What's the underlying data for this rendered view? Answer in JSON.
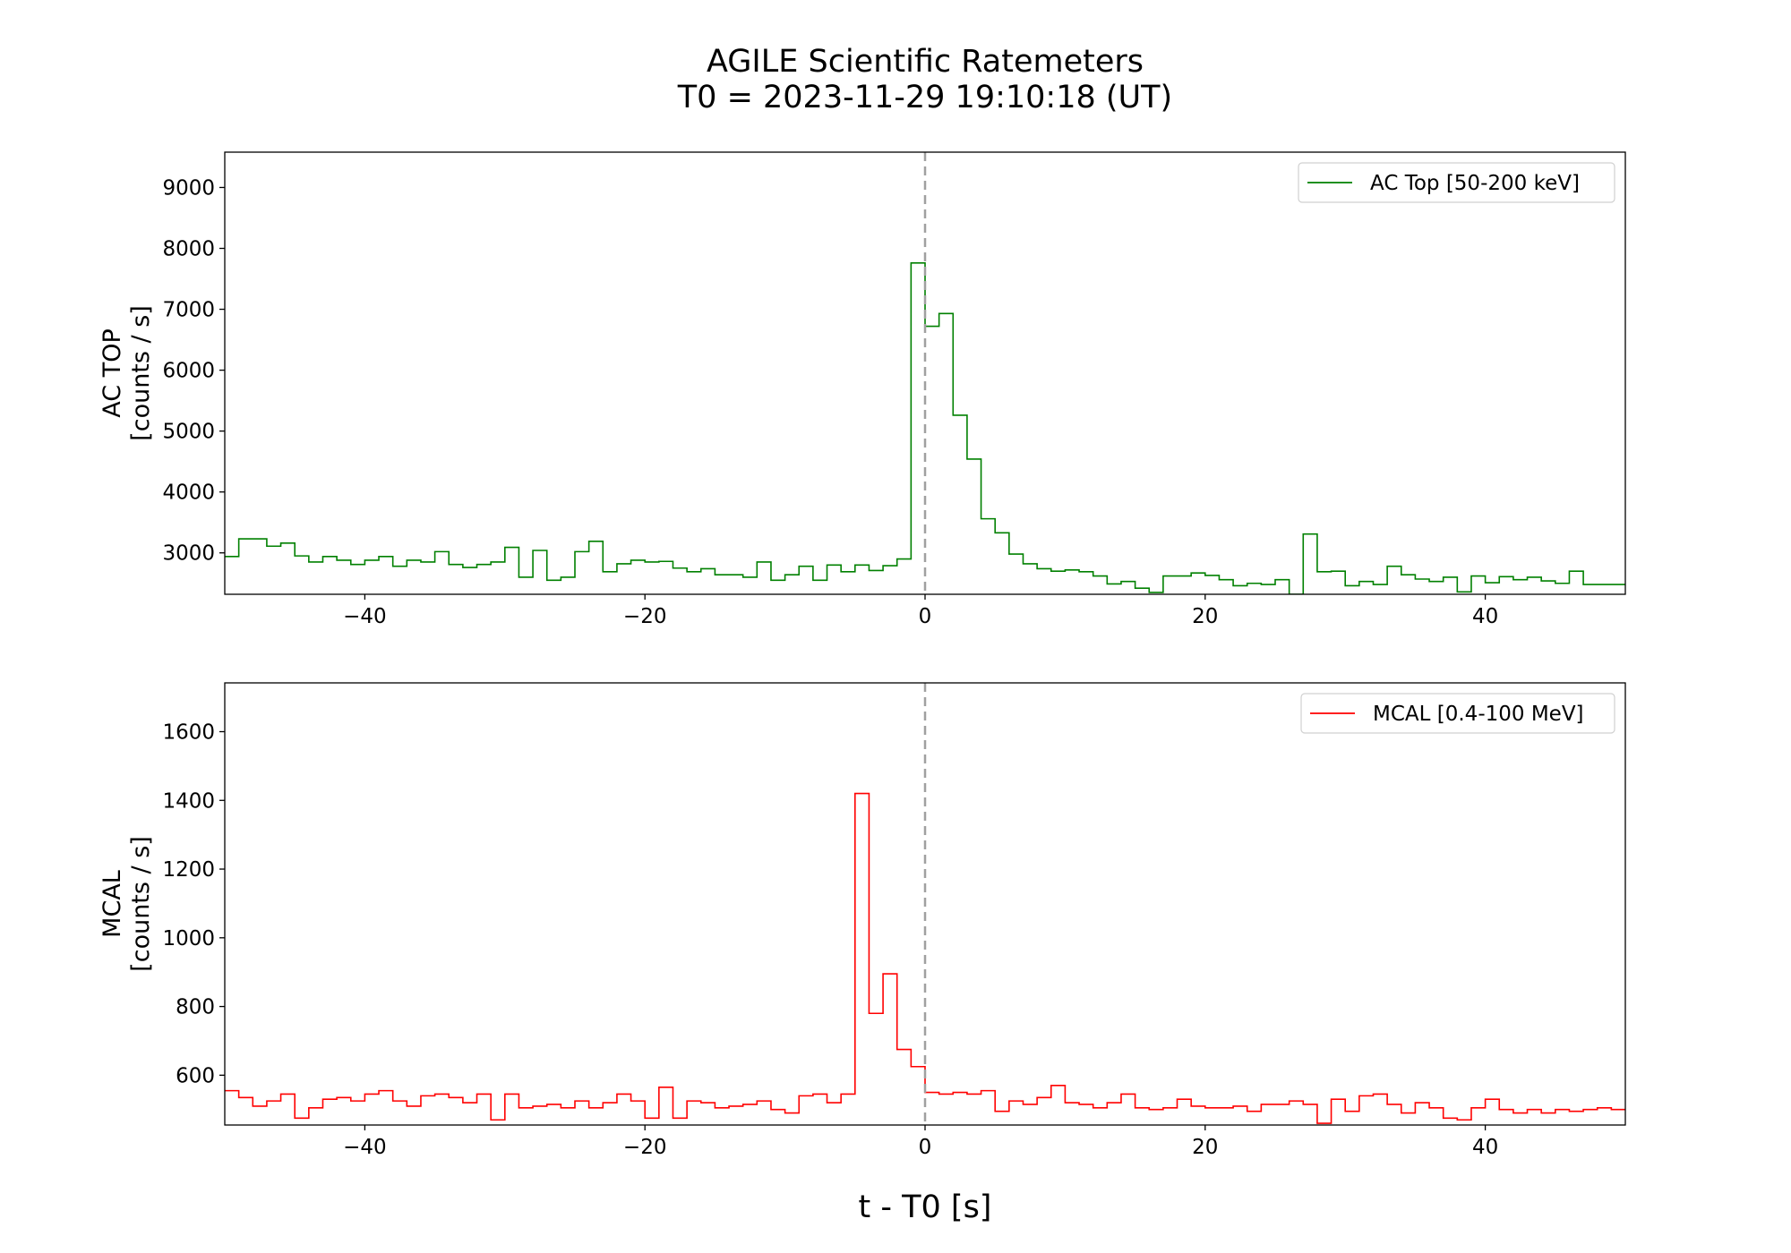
{
  "figure": {
    "title_line1": "AGILE Scientific Ratemeters",
    "title_line2": "T0 = 2023-11-29 19:10:18 (UT)",
    "xlabel": "t - T0 [s]"
  },
  "chart_data": [
    {
      "type": "line",
      "step": true,
      "ylabel_line1": "AC TOP",
      "ylabel_line2": "[counts / s]",
      "xlim": [
        -50,
        50
      ],
      "ylim": [
        2320,
        9580
      ],
      "xticks": [
        -40,
        -20,
        0,
        20,
        40
      ],
      "xtick_labels": [
        "−40",
        "−20",
        "0",
        "20",
        "40"
      ],
      "yticks": [
        3000,
        4000,
        5000,
        6000,
        7000,
        8000,
        9000
      ],
      "ytick_labels": [
        "3000",
        "4000",
        "5000",
        "6000",
        "7000",
        "8000",
        "9000"
      ],
      "t0_marker": 0,
      "legend_position": "top-right",
      "series": [
        {
          "name": "AC Top [50-200 keV]",
          "color": "#008000",
          "bin_width": 1,
          "x_start": -50,
          "values": [
            2940,
            3230,
            3230,
            3110,
            3160,
            2950,
            2850,
            2940,
            2880,
            2810,
            2880,
            2940,
            2780,
            2880,
            2850,
            3020,
            2810,
            2760,
            2810,
            2850,
            3090,
            2600,
            3040,
            2550,
            2600,
            3020,
            3190,
            2690,
            2820,
            2880,
            2850,
            2860,
            2750,
            2690,
            2740,
            2640,
            2640,
            2600,
            2850,
            2550,
            2640,
            2780,
            2550,
            2800,
            2690,
            2800,
            2710,
            2790,
            2900,
            7760,
            6720,
            6930,
            5260,
            4540,
            3560,
            3330,
            2980,
            2820,
            2740,
            2700,
            2720,
            2690,
            2620,
            2490,
            2530,
            2420,
            2350,
            2620,
            2620,
            2670,
            2630,
            2560,
            2460,
            2500,
            2480,
            2560,
            2320,
            3310,
            2690,
            2700,
            2460,
            2530,
            2480,
            2780,
            2640,
            2570,
            2530,
            2600,
            2360,
            2620,
            2510,
            2610,
            2560,
            2600,
            2540,
            2500,
            2700,
            2480,
            2480,
            2480
          ]
        }
      ]
    },
    {
      "type": "line",
      "step": true,
      "ylabel_line1": "MCAL",
      "ylabel_line2": "[counts / s]",
      "xlim": [
        -50,
        50
      ],
      "ylim": [
        455,
        1742
      ],
      "xticks": [
        -40,
        -20,
        0,
        20,
        40
      ],
      "xtick_labels": [
        "−40",
        "−20",
        "0",
        "20",
        "40"
      ],
      "yticks": [
        600,
        800,
        1000,
        1200,
        1400,
        1600
      ],
      "ytick_labels": [
        "600",
        "800",
        "1000",
        "1200",
        "1400",
        "1600"
      ],
      "t0_marker": 0,
      "legend_position": "top-right",
      "series": [
        {
          "name": "MCAL [0.4-100 MeV]",
          "color": "#ff0000",
          "bin_width": 1,
          "x_start": -50,
          "values": [
            555,
            535,
            510,
            525,
            545,
            475,
            505,
            530,
            535,
            525,
            545,
            555,
            525,
            510,
            540,
            545,
            535,
            520,
            545,
            470,
            545,
            505,
            510,
            515,
            505,
            525,
            505,
            520,
            545,
            525,
            475,
            565,
            475,
            525,
            520,
            505,
            510,
            515,
            525,
            500,
            490,
            540,
            545,
            520,
            545,
            1420,
            780,
            895,
            675,
            625,
            550,
            545,
            550,
            545,
            555,
            495,
            525,
            515,
            535,
            570,
            520,
            515,
            505,
            520,
            545,
            505,
            500,
            505,
            530,
            510,
            505,
            505,
            510,
            495,
            515,
            515,
            525,
            515,
            460,
            530,
            495,
            540,
            545,
            515,
            490,
            520,
            505,
            475,
            470,
            505,
            530,
            500,
            490,
            500,
            490,
            500,
            495,
            500,
            505,
            500
          ]
        }
      ]
    }
  ]
}
